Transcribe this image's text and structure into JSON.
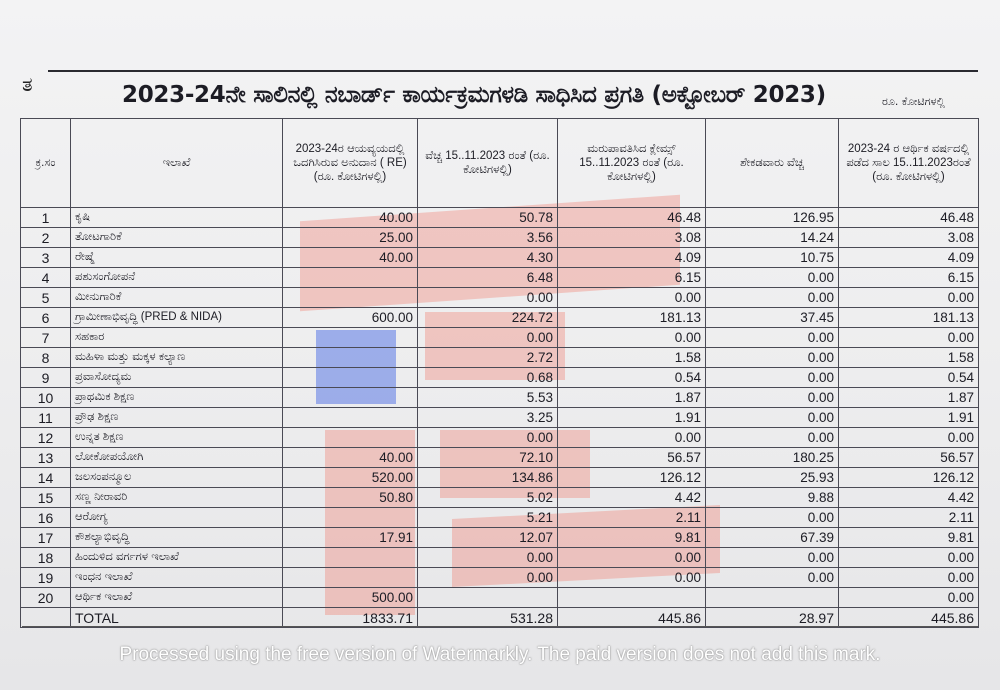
{
  "page": {
    "corner_mark": "ತ",
    "title": "2023-24ನೇ ಸಾಲಿನಲ್ಲಿ ನಬಾರ್ಡ್ ಕಾರ್ಯಕ್ರಮಗಳಡಿ ಸಾಧಿಸಿದ ಪ್ರಗತಿ (ಅಕ್ಟೋಬರ್ 2023)",
    "unit_note": "ರೂ. ಕೋಟಿಗಳಲ್ಲಿ"
  },
  "table": {
    "headers": [
      "ಕ್ರ.ಸಂ",
      "ಇಲಾಖೆ",
      "2023-24ರ ಆಯವ್ಯಯದಲ್ಲಿ ಒದಗಿಸಿರುವ ಅನುದಾನ ( RE) (ರೂ. ಕೋಟಿಗಳಲ್ಲಿ)",
      "ವೆಚ್ಚ 15..11.2023 ರಂತೆ (ರೂ. ಕೋಟಿಗಳಲ್ಲಿ)",
      "ಮರುಪಾವತಿಸಿದ ಕ್ಲೇಮ್ಸ್ 15..11.2023 ರಂತೆ (ರೂ. ಕೋಟಿಗಳಲ್ಲಿ)",
      "ಶೇಕಡವಾರು ವೆಚ್ಚ",
      "2023-24 ರ ಆರ್ಥಿಕ ವರ್ಷದಲ್ಲಿ ಪಡೆದ ಸಾಲ 15..11.2023ರಂತೆ (ರೂ. ಕೋಟಿಗಳಲ್ಲಿ)"
    ],
    "rows": [
      [
        "1",
        "ಕೃಷಿ",
        "40.00",
        "50.78",
        "46.48",
        "126.95",
        "46.48"
      ],
      [
        "2",
        "ತೋಟಗಾರಿಕೆ",
        "25.00",
        "3.56",
        "3.08",
        "14.24",
        "3.08"
      ],
      [
        "3",
        "ರೇಷ್ಮೆ",
        "40.00",
        "4.30",
        "4.09",
        "10.75",
        "4.09"
      ],
      [
        "4",
        "ಪಶುಸಂಗೋಪನೆ",
        "",
        "6.48",
        "6.15",
        "0.00",
        "6.15"
      ],
      [
        "5",
        "ಮೀನುಗಾರಿಕೆ",
        "",
        "0.00",
        "0.00",
        "0.00",
        "0.00"
      ],
      [
        "6",
        "ಗ್ರಾಮೀಣಾಭಿವೃದ್ಧಿ (PRED & NIDA)",
        "600.00",
        "224.72",
        "181.13",
        "37.45",
        "181.13"
      ],
      [
        "7",
        "ಸಹಕಾರ",
        "",
        "0.00",
        "0.00",
        "0.00",
        "0.00"
      ],
      [
        "8",
        "ಮಹಿಳಾ ಮತ್ತು ಮಕ್ಕಳ ಕಲ್ಯಾಣ",
        "",
        "2.72",
        "1.58",
        "0.00",
        "1.58"
      ],
      [
        "9",
        "ಪ್ರವಾಸೋದ್ಯಮ",
        "",
        "0.68",
        "0.54",
        "0.00",
        "0.54"
      ],
      [
        "10",
        "ಪ್ರಾಥಮಿಕ ಶಿಕ್ಷಣ",
        "",
        "5.53",
        "1.87",
        "0.00",
        "1.87"
      ],
      [
        "11",
        "ಪ್ರೌಢ ಶಿಕ್ಷಣ",
        "",
        "3.25",
        "1.91",
        "0.00",
        "1.91"
      ],
      [
        "12",
        "ಉನ್ನತ ಶಿಕ್ಷಣ",
        "",
        "0.00",
        "0.00",
        "0.00",
        "0.00"
      ],
      [
        "13",
        "ಲೋಕೋಪಯೋಗಿ",
        "40.00",
        "72.10",
        "56.57",
        "180.25",
        "56.57"
      ],
      [
        "14",
        "ಜಲಸಂಪನ್ಮೂಲ",
        "520.00",
        "134.86",
        "126.12",
        "25.93",
        "126.12"
      ],
      [
        "15",
        "ಸಣ್ಣ ನೀರಾವರಿ",
        "50.80",
        "5.02",
        "4.42",
        "9.88",
        "4.42"
      ],
      [
        "16",
        "ಆರೋಗ್ಯ",
        "",
        "5.21",
        "2.11",
        "0.00",
        "2.11"
      ],
      [
        "17",
        "ಕೌಶಲ್ಯಾಭಿವೃದ್ಧಿ",
        "17.91",
        "12.07",
        "9.81",
        "67.39",
        "9.81"
      ],
      [
        "18",
        "ಹಿಂದುಳಿದ ವರ್ಗಗಳ ಇಲಾಖೆ",
        "",
        "0.00",
        "0.00",
        "0.00",
        "0.00"
      ],
      [
        "19",
        "ಇಂಧನ ಇಲಾಖೆ",
        "",
        "0.00",
        "0.00",
        "0.00",
        "0.00"
      ],
      [
        "20",
        "ಆರ್ಥಿಕ ಇಲಾಖೆ",
        "500.00",
        "",
        "",
        "",
        "0.00"
      ]
    ],
    "total": [
      "",
      "TOTAL",
      "1833.71",
      "531.28",
      "445.86",
      "28.97",
      "445.86"
    ]
  },
  "watermark": "Processed using the free version of Watermarkly. The paid version does not add this mark.",
  "colors": {
    "highlight_red": "#f07a6a",
    "highlight_blue": "#6f86e6",
    "ink": "#1c1c24"
  }
}
